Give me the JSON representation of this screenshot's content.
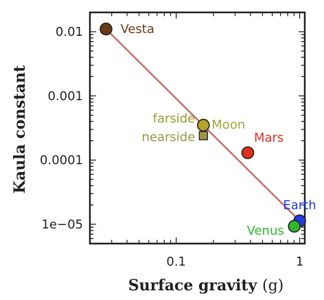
{
  "chart_data": {
    "type": "scatter",
    "xlabel": "Surface gravity",
    "xunit": "(g)",
    "ylabel": "Kaula constant",
    "xscale": "log",
    "yscale": "log",
    "xlim": [
      0.02,
      1.1
    ],
    "ylim": [
      5e-06,
      0.02
    ],
    "xticks": [
      {
        "value": 0.1,
        "label": "0.1"
      },
      {
        "value": 1,
        "label": "1"
      }
    ],
    "yticks": [
      {
        "value": 0.01,
        "label": "0.01"
      },
      {
        "value": 0.001,
        "label": "0.001"
      },
      {
        "value": 0.0001,
        "label": "0.0001"
      },
      {
        "value": 1e-05,
        "label": "1e−05"
      }
    ],
    "grid": false,
    "points": [
      {
        "label": "Vesta",
        "x": 0.027,
        "y": 0.011,
        "color": "#6b3b14",
        "label_color": "#6b3b14",
        "marker": "circle"
      },
      {
        "label": "farside",
        "x": 0.166,
        "y": 0.00035,
        "color": "#b5a22a",
        "label_color": "#9a9a2e",
        "marker": "circle"
      },
      {
        "label": "Moon",
        "x": 0.166,
        "y": 0.00035,
        "color": "#b5a22a",
        "label_color": "#a5a23a",
        "marker": "none"
      },
      {
        "label": "nearside",
        "x": 0.166,
        "y": 0.00024,
        "color": "#9b9544",
        "label_color": "#9b9544",
        "marker": "square"
      },
      {
        "label": "Mars",
        "x": 0.38,
        "y": 0.00013,
        "color": "#e0301e",
        "label_color": "#e0301e",
        "marker": "circle"
      },
      {
        "label": "Earth",
        "x": 1.0,
        "y": 1.13e-05,
        "color": "#1f3be8",
        "label_color": "#1f3be8",
        "marker": "circle"
      },
      {
        "label": "Venus",
        "x": 0.905,
        "y": 9.3e-06,
        "color": "#2fb52f",
        "label_color": "#2fb52f",
        "marker": "circle"
      }
    ],
    "fit_line": {
      "color": "#c0706c",
      "from": {
        "x": 0.027,
        "y": 0.011
      },
      "to": {
        "x": 1.0,
        "y": 1.13e-05
      }
    }
  }
}
